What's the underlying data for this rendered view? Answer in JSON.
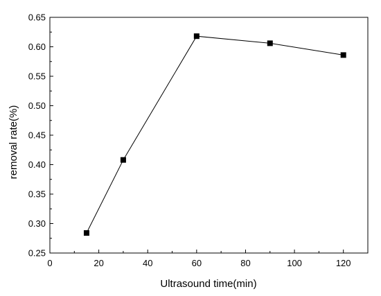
{
  "chart_data": {
    "type": "line",
    "xlabel": "Ultrasound time(min)",
    "ylabel": "removal rate(%)",
    "xlim": [
      0,
      130
    ],
    "ylim": [
      0.25,
      0.65
    ],
    "x_ticks": [
      "0",
      "20",
      "40",
      "60",
      "80",
      "100",
      "120"
    ],
    "y_ticks": [
      "0.25",
      "0.30",
      "0.35",
      "0.40",
      "0.45",
      "0.50",
      "0.55",
      "0.60",
      "0.65"
    ],
    "series": [
      {
        "x": [
          15,
          30,
          60,
          90,
          120
        ],
        "values": [
          0.284,
          0.408,
          0.618,
          0.606,
          0.586
        ]
      }
    ],
    "grid": false,
    "legend": "none",
    "line_color": "#000000",
    "marker": "square"
  }
}
